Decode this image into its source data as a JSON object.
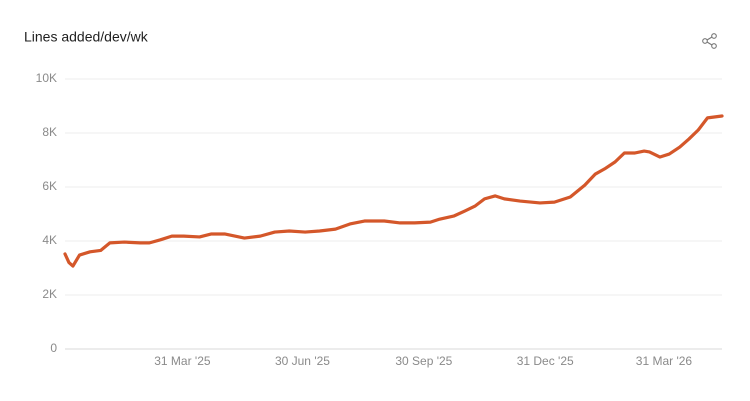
{
  "chart_data": {
    "type": "line",
    "title": "Lines added/dev/wk",
    "x": [
      "2025-01-01",
      "2025-01-04",
      "2025-01-07",
      "2025-01-12",
      "2025-01-20",
      "2025-01-28",
      "2025-02-04",
      "2025-02-15",
      "2025-02-27",
      "2025-03-06",
      "2025-03-14",
      "2025-03-23",
      "2025-04-01",
      "2025-04-13",
      "2025-04-22",
      "2025-05-02",
      "2025-05-17",
      "2025-05-29",
      "2025-06-09",
      "2025-06-20",
      "2025-07-02",
      "2025-07-13",
      "2025-07-25",
      "2025-08-05",
      "2025-08-16",
      "2025-08-31",
      "2025-09-12",
      "2025-09-23",
      "2025-10-05",
      "2025-10-12",
      "2025-10-23",
      "2025-10-31",
      "2025-11-08",
      "2025-11-15",
      "2025-11-23",
      "2025-11-30",
      "2025-12-12",
      "2025-12-27",
      "2026-01-07",
      "2026-01-19",
      "2026-01-30",
      "2026-02-07",
      "2026-02-14",
      "2026-02-22",
      "2026-03-01",
      "2026-03-09",
      "2026-03-16",
      "2026-03-20",
      "2026-03-28",
      "2026-04-04",
      "2026-04-12",
      "2026-04-19",
      "2026-04-26",
      "2026-05-03",
      "2026-05-14"
    ],
    "series": [
      {
        "name": "Lines added/dev/wk",
        "color": "#d4572a",
        "values": [
          3520,
          3200,
          3070,
          3480,
          3600,
          3650,
          3930,
          3960,
          3930,
          3930,
          4040,
          4180,
          4180,
          4150,
          4260,
          4260,
          4110,
          4180,
          4330,
          4370,
          4330,
          4370,
          4440,
          4630,
          4740,
          4740,
          4670,
          4670,
          4700,
          4810,
          4930,
          5110,
          5300,
          5560,
          5670,
          5560,
          5480,
          5410,
          5440,
          5630,
          6070,
          6480,
          6670,
          6930,
          7260,
          7260,
          7330,
          7300,
          7110,
          7220,
          7480,
          7780,
          8110,
          8560,
          8630
        ]
      }
    ],
    "xlim": [
      "2025-01-01",
      "2026-05-14"
    ],
    "xticks": [
      {
        "value": "2025-03-31",
        "label": "31 Mar '25"
      },
      {
        "value": "2025-06-30",
        "label": "30 Jun '25"
      },
      {
        "value": "2025-09-30",
        "label": "30 Sep '25"
      },
      {
        "value": "2025-12-31",
        "label": "31 Dec '25"
      },
      {
        "value": "2026-03-31",
        "label": "31 Mar '26"
      }
    ],
    "ylim": [
      0,
      10000
    ],
    "yticks": [
      0,
      {
        "value": 2000,
        "label": "2K"
      },
      {
        "value": 4000,
        "label": "4K"
      },
      {
        "value": 6000,
        "label": "6K"
      },
      {
        "value": 8000,
        "label": "8K"
      },
      {
        "value": 10000,
        "label": "10K"
      }
    ],
    "grid": true
  }
}
